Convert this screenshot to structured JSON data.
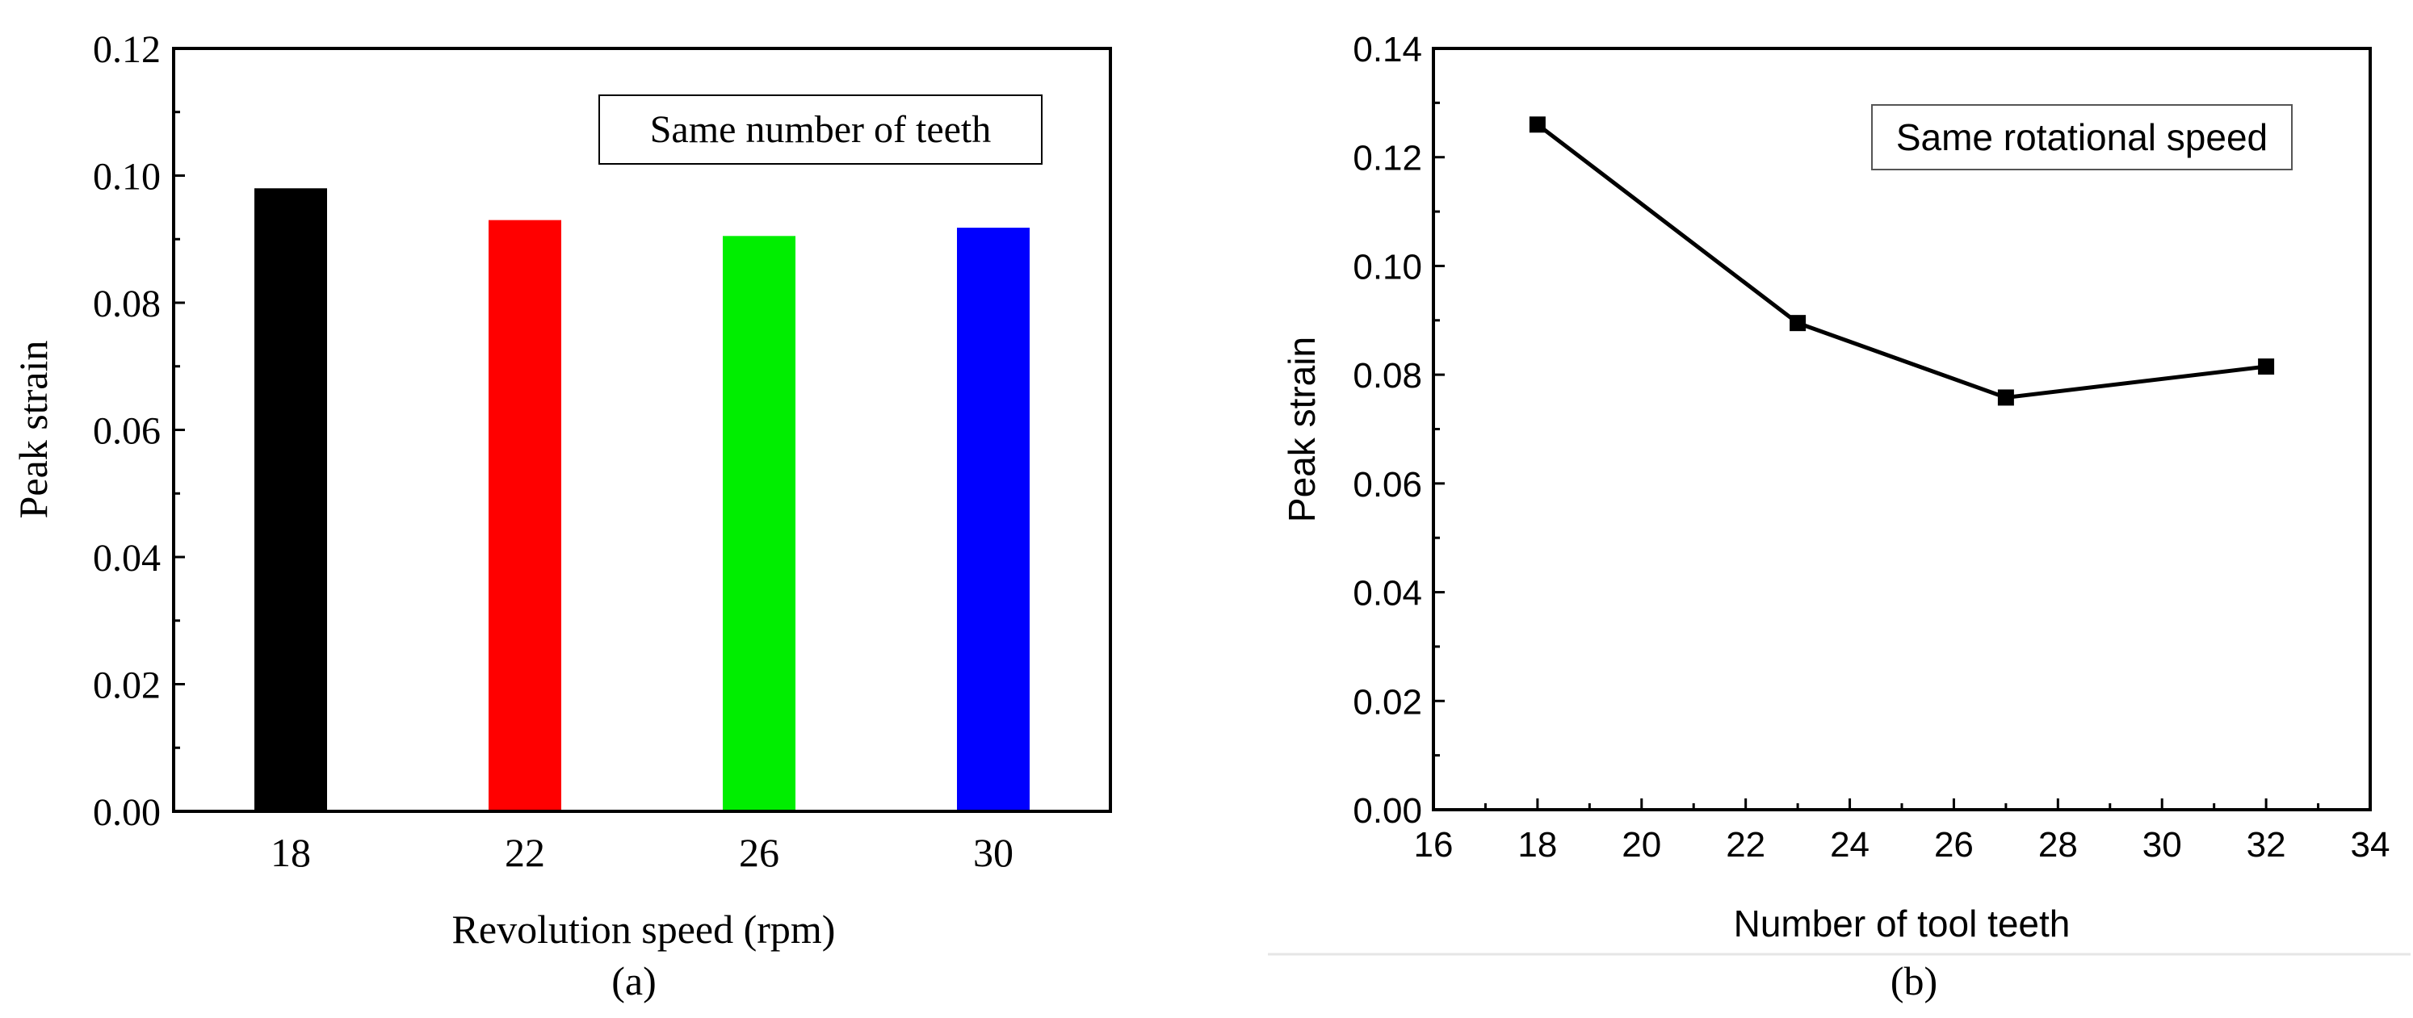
{
  "chart_data": [
    {
      "id": "a",
      "type": "bar",
      "panel_label": "(a)",
      "xlabel": "Revolution speed (rpm)",
      "ylabel": "Peak strain",
      "annotation": "Same number of teeth",
      "categories": [
        "18",
        "22",
        "26",
        "30"
      ],
      "values": [
        0.098,
        0.093,
        0.0905,
        0.0918
      ],
      "colors": [
        "#000000",
        "#ff0000",
        "#00ee00",
        "#0000ff"
      ],
      "ylim": [
        0,
        0.12
      ],
      "yticks": [
        "0.00",
        "0.02",
        "0.04",
        "0.06",
        "0.08",
        "0.10",
        "0.12"
      ]
    },
    {
      "id": "b",
      "type": "line",
      "panel_label": "(b)",
      "xlabel": "Number of tool teeth",
      "ylabel": "Peak strain",
      "annotation": "Same rotational speed",
      "x": [
        18,
        23,
        27,
        32
      ],
      "y": [
        0.126,
        0.0895,
        0.0758,
        0.0815
      ],
      "xlim": [
        16,
        34
      ],
      "ylim": [
        0,
        0.14
      ],
      "xticks": [
        "16",
        "18",
        "20",
        "22",
        "24",
        "26",
        "28",
        "30",
        "32",
        "34"
      ],
      "yticks": [
        "0.00",
        "0.02",
        "0.04",
        "0.06",
        "0.08",
        "0.10",
        "0.12",
        "0.14"
      ],
      "color": "#000000"
    }
  ]
}
